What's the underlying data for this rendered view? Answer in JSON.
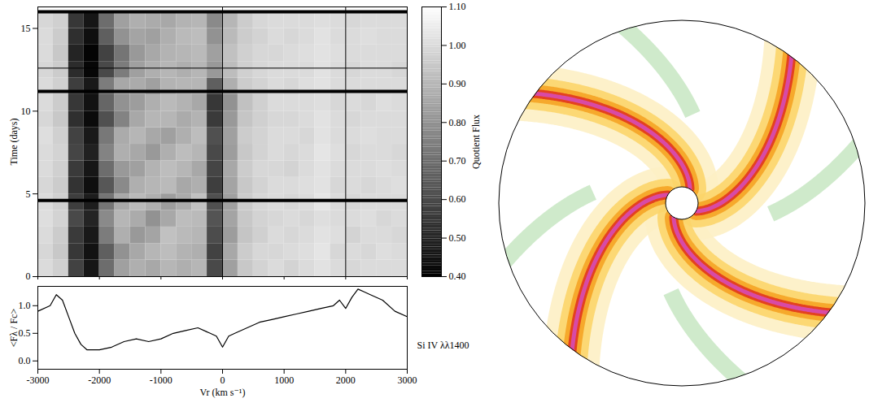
{
  "chart_data": [
    {
      "type": "heatmap",
      "ylabel": "Time (days)",
      "tick_labels": "y",
      "xlim": [
        -3000,
        3000
      ],
      "xticks": [
        -3000,
        -2000,
        -1000,
        0,
        1000,
        2000,
        3000
      ],
      "ylim": [
        0,
        16.3
      ],
      "yticks": [
        0,
        5,
        10,
        15
      ],
      "x_edges": [
        -3000,
        -2750,
        -2500,
        -2250,
        -2000,
        -1750,
        -1500,
        -1250,
        -1000,
        -750,
        -500,
        -250,
        0,
        250,
        500,
        750,
        1000,
        1250,
        1500,
        1750,
        2000,
        2250,
        2500,
        2750,
        3000
      ],
      "y_edges": [
        0,
        1,
        2,
        3,
        4,
        5,
        6,
        7,
        8,
        9,
        10,
        11,
        12,
        13,
        14,
        15,
        16
      ],
      "cells": [
        [
          1.0,
          0.97,
          0.58,
          0.46,
          0.7,
          0.84,
          0.88,
          0.86,
          0.9,
          0.88,
          0.9,
          0.6,
          0.84,
          0.95,
          0.98,
          1.0,
          0.98,
          1.0,
          1.02,
          1.0,
          0.99,
          1.0,
          1.0,
          1.0
        ],
        [
          0.99,
          0.95,
          0.55,
          0.45,
          0.66,
          0.8,
          0.86,
          0.9,
          0.92,
          0.89,
          0.88,
          0.58,
          0.86,
          0.96,
          0.99,
          0.99,
          1.0,
          1.01,
          1.03,
          0.99,
          1.0,
          0.99,
          1.01,
          1.0
        ],
        [
          1.0,
          0.96,
          0.56,
          0.47,
          0.74,
          0.88,
          0.82,
          0.85,
          0.93,
          0.91,
          0.9,
          0.61,
          0.83,
          0.94,
          0.97,
          1.0,
          0.99,
          1.0,
          1.02,
          1.01,
          0.98,
          1.0,
          1.0,
          0.99
        ],
        [
          1.01,
          0.98,
          0.6,
          0.5,
          0.78,
          0.9,
          0.87,
          0.8,
          0.86,
          0.92,
          0.91,
          0.63,
          0.85,
          0.95,
          0.98,
          0.99,
          1.0,
          0.99,
          1.01,
          1.0,
          1.0,
          1.01,
          0.99,
          1.0
        ],
        [
          1.0,
          0.97,
          0.57,
          0.48,
          0.72,
          0.86,
          0.91,
          0.88,
          0.83,
          0.87,
          0.93,
          0.62,
          0.84,
          0.96,
          0.99,
          1.0,
          0.99,
          1.0,
          1.03,
          1.0,
          0.99,
          1.0,
          1.0,
          1.0
        ],
        [
          0.99,
          0.96,
          0.54,
          0.44,
          0.64,
          0.78,
          0.88,
          0.9,
          0.91,
          0.86,
          0.88,
          0.57,
          0.85,
          0.95,
          0.98,
          1.0,
          1.0,
          1.01,
          1.02,
          0.99,
          1.0,
          0.99,
          1.0,
          1.01
        ],
        [
          1.0,
          0.97,
          0.56,
          0.46,
          0.7,
          0.82,
          0.84,
          0.89,
          0.92,
          0.9,
          0.86,
          0.59,
          0.86,
          0.96,
          0.99,
          0.99,
          0.98,
          1.0,
          1.02,
          1.0,
          1.0,
          1.0,
          1.01,
          1.0
        ],
        [
          1.0,
          0.98,
          0.59,
          0.49,
          0.76,
          0.88,
          0.86,
          0.82,
          0.88,
          0.92,
          0.9,
          0.6,
          0.83,
          0.95,
          0.98,
          1.0,
          0.99,
          1.0,
          1.03,
          1.01,
          0.99,
          1.0,
          1.0,
          0.99
        ],
        [
          1.01,
          0.97,
          0.58,
          0.47,
          0.73,
          0.87,
          0.9,
          0.86,
          0.84,
          0.88,
          0.92,
          0.62,
          0.84,
          0.96,
          0.98,
          1.0,
          1.0,
          0.99,
          1.02,
          1.0,
          1.0,
          1.01,
          1.0,
          1.0
        ],
        [
          0.99,
          0.95,
          0.53,
          0.43,
          0.62,
          0.76,
          0.86,
          0.9,
          0.9,
          0.87,
          0.89,
          0.56,
          0.82,
          0.94,
          0.97,
          0.99,
          0.99,
          1.0,
          1.02,
          1.0,
          0.99,
          1.0,
          1.0,
          1.0
        ],
        [
          1.0,
          0.96,
          0.55,
          0.45,
          0.68,
          0.8,
          0.83,
          0.88,
          0.91,
          0.89,
          0.86,
          0.55,
          0.8,
          0.93,
          0.97,
          1.0,
          1.0,
          1.0,
          1.01,
          0.99,
          1.0,
          0.99,
          1.01,
          1.0
        ],
        [
          1.0,
          0.97,
          0.57,
          0.47,
          0.74,
          0.86,
          0.87,
          0.84,
          0.89,
          0.9,
          0.9,
          0.66,
          0.88,
          0.96,
          0.98,
          1.0,
          0.99,
          1.01,
          1.02,
          1.0,
          1.0,
          1.0,
          1.0,
          1.0
        ],
        [
          0.99,
          0.96,
          0.52,
          0.42,
          0.6,
          0.74,
          0.84,
          0.88,
          0.9,
          0.88,
          0.9,
          0.82,
          0.92,
          0.97,
          0.99,
          1.0,
          1.0,
          1.0,
          1.02,
          1.0,
          0.99,
          1.0,
          1.0,
          0.99
        ],
        [
          1.0,
          0.95,
          0.5,
          0.41,
          0.58,
          0.72,
          0.82,
          0.86,
          0.89,
          0.9,
          0.91,
          0.84,
          0.93,
          0.97,
          0.99,
          0.99,
          1.0,
          1.01,
          1.02,
          1.01,
          1.0,
          1.0,
          1.0,
          1.0
        ],
        [
          1.0,
          0.96,
          0.53,
          0.44,
          0.66,
          0.8,
          0.85,
          0.84,
          0.88,
          0.91,
          0.92,
          0.8,
          0.91,
          0.96,
          0.98,
          1.0,
          0.99,
          1.0,
          1.02,
          1.0,
          1.0,
          1.01,
          1.0,
          1.0
        ],
        [
          0.99,
          0.97,
          0.55,
          0.46,
          0.7,
          0.84,
          0.88,
          0.87,
          0.86,
          0.89,
          0.9,
          0.78,
          0.9,
          0.96,
          0.99,
          1.0,
          1.0,
          1.0,
          1.01,
          1.0,
          0.99,
          1.0,
          1.0,
          1.0
        ]
      ],
      "gap_lines": [
        4.6,
        11.2,
        16.0
      ],
      "marker_lines": [
        12.6
      ],
      "reference_x": [
        0,
        2000
      ],
      "colorbar": {
        "label": "Quotient Flux",
        "lim": [
          0.4,
          1.1
        ],
        "ticks": [
          {
            "value": 0.4,
            "label": "0.40"
          },
          {
            "value": 0.5,
            "label": "0.50"
          },
          {
            "value": 0.6,
            "label": "0.60"
          },
          {
            "value": 0.7,
            "label": "0.70"
          },
          {
            "value": 0.8,
            "label": "0.80"
          },
          {
            "value": 0.9,
            "label": "0.90"
          },
          {
            "value": 1.0,
            "label": "1.00"
          },
          {
            "value": 1.1,
            "label": "1.10"
          }
        ]
      }
    },
    {
      "type": "line",
      "xlabel": "Vr (km s⁻¹)",
      "ylabel": "<Fλ / Fc>",
      "annotation": "Si IV λλ1400",
      "xlim": [
        -3000,
        3000
      ],
      "xticks": [
        -3000,
        -2000,
        -1000,
        0,
        1000,
        2000,
        3000
      ],
      "ylim": [
        -0.15,
        1.35
      ],
      "yticks": [
        {
          "value": 0,
          "label": "0.0"
        },
        {
          "value": 0.5,
          "label": "0.5"
        },
        {
          "value": 1,
          "label": "1.0"
        }
      ],
      "x": [
        -3000,
        -2800,
        -2700,
        -2600,
        -2500,
        -2400,
        -2300,
        -2200,
        -2000,
        -1800,
        -1600,
        -1400,
        -1200,
        -1000,
        -800,
        -600,
        -400,
        -200,
        -100,
        0,
        100,
        200,
        400,
        600,
        800,
        1000,
        1200,
        1400,
        1600,
        1800,
        1900,
        2000,
        2100,
        2200,
        2300,
        2400,
        2600,
        2800,
        3000
      ],
      "values": [
        0.9,
        1.0,
        1.2,
        1.1,
        0.8,
        0.5,
        0.3,
        0.2,
        0.2,
        0.25,
        0.35,
        0.4,
        0.35,
        0.4,
        0.5,
        0.55,
        0.6,
        0.5,
        0.45,
        0.25,
        0.45,
        0.5,
        0.6,
        0.7,
        0.75,
        0.8,
        0.85,
        0.9,
        0.95,
        1.0,
        1.1,
        0.95,
        1.15,
        1.3,
        1.25,
        1.2,
        1.1,
        0.9,
        0.8
      ],
      "color": "#000000"
    }
  ]
}
